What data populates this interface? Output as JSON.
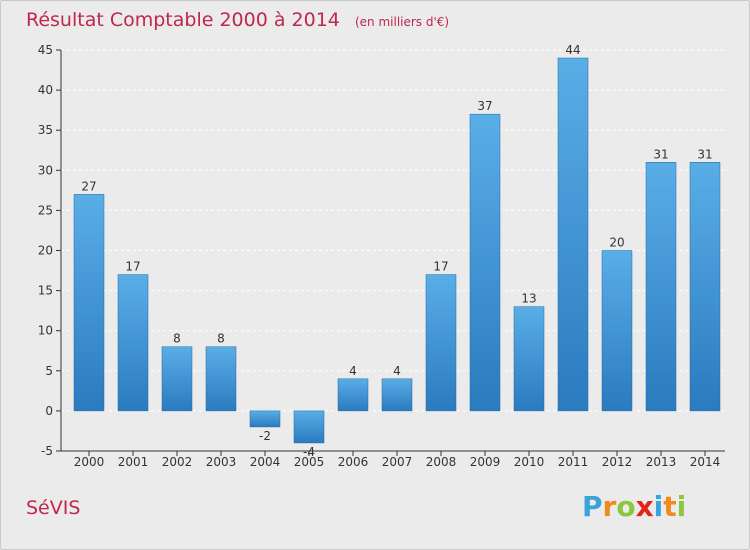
{
  "chart_data": {
    "type": "bar",
    "title": "Résultat Comptable 2000 à 2014",
    "unit": "(en milliers d'€)",
    "categories": [
      "2000",
      "2001",
      "2002",
      "2003",
      "2004",
      "2005",
      "2006",
      "2007",
      "2008",
      "2009",
      "2010",
      "2011",
      "2012",
      "2013",
      "2014"
    ],
    "values": [
      27,
      17,
      8,
      8,
      -2,
      -4,
      4,
      4,
      17,
      37,
      13,
      44,
      20,
      31,
      31
    ],
    "y_ticks": [
      "-5",
      "0",
      "5",
      "10",
      "15",
      "20",
      "25",
      "30",
      "35",
      "40",
      "45"
    ],
    "ylim": [
      -5,
      45
    ],
    "grid": true,
    "bar_color": "#3d92d6"
  },
  "footer": {
    "commune": "SéVIS",
    "logo_letters": [
      "P",
      "r",
      "o",
      "x",
      "i",
      "t",
      "i"
    ],
    "logo_colors": [
      "#3aa3dc",
      "#f08a1c",
      "#8cc63f",
      "#e2231a",
      "#3aa3dc",
      "#f08a1c",
      "#8cc63f"
    ]
  }
}
